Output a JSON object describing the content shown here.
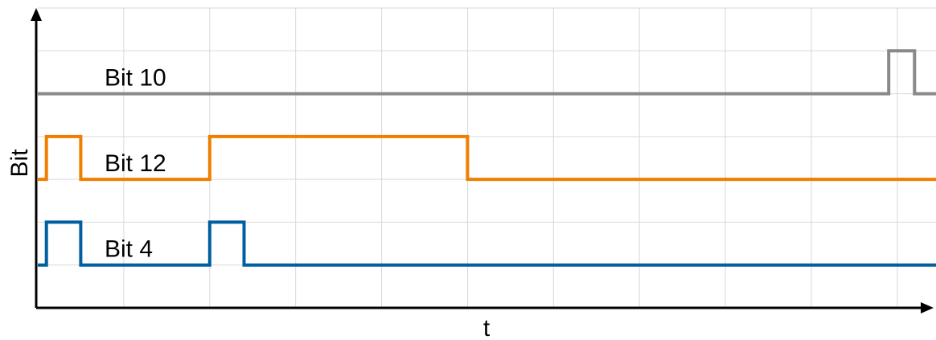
{
  "chart_data": {
    "type": "line",
    "step": true,
    "xlabel": "t",
    "ylabel": "Bit",
    "xlim": [
      0,
      20.9
    ],
    "ylim": [
      0,
      7
    ],
    "grid": true,
    "legend": "none",
    "series": [
      {
        "name": "Bit 10",
        "color": "#898989",
        "baseline": 5,
        "x": [
          0,
          19.8,
          19.8,
          20.4,
          20.4,
          20.9
        ],
        "y": [
          5,
          5,
          6,
          6,
          5,
          5
        ]
      },
      {
        "name": "Bit 12",
        "color": "#f07e00",
        "baseline": 3,
        "x": [
          0,
          0.2,
          0.2,
          1,
          1,
          4,
          4,
          10,
          10,
          20.9
        ],
        "y": [
          3,
          3,
          4,
          4,
          3,
          3,
          4,
          4,
          3,
          3
        ]
      },
      {
        "name": "Bit 4",
        "color": "#005fa0",
        "baseline": 1,
        "x": [
          0,
          0.2,
          0.2,
          1,
          1,
          4,
          4,
          4.8,
          4.8,
          20.9
        ],
        "y": [
          1,
          1,
          2,
          2,
          1,
          1,
          2,
          2,
          1,
          1
        ]
      }
    ]
  }
}
